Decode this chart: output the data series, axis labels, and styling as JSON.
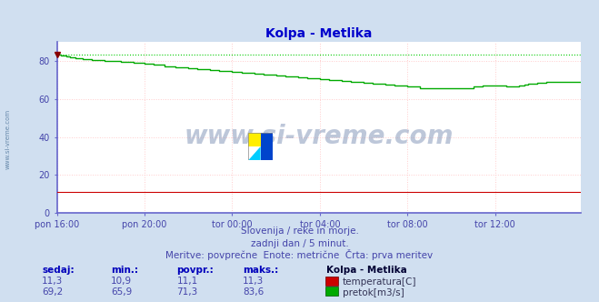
{
  "title": "Kolpa - Metlika",
  "bg_color": "#d0dff0",
  "plot_bg_color": "#ffffff",
  "grid_color": "#ffcccc",
  "spine_color": "#6666cc",
  "xlabel_ticks": [
    "pon 16:00",
    "pon 20:00",
    "tor 00:00",
    "tor 04:00",
    "tor 08:00",
    "tor 12:00"
  ],
  "ylabel_ticks": [
    0,
    20,
    40,
    60,
    80
  ],
  "ylim": [
    0,
    90
  ],
  "xlim": [
    0,
    287
  ],
  "tick_positions": [
    0,
    48,
    96,
    144,
    192,
    240
  ],
  "watermark": "www.si-vreme.com",
  "subtitle1": "Slovenija / reke in morje.",
  "subtitle2": "zadnji dan / 5 minut.",
  "subtitle3": "Meritve: povprečne  Enote: metrične  Črta: prva meritev",
  "legend_title": "Kolpa - Metlika",
  "legend_temp_label": "temperatura[C]",
  "legend_flow_label": "pretok[m3/s]",
  "stats_headers": [
    "sedaj:",
    "min.:",
    "povpr.:",
    "maks.:"
  ],
  "stats_temp": [
    "11,3",
    "10,9",
    "11,1",
    "11,3"
  ],
  "stats_flow": [
    "69,2",
    "65,9",
    "71,3",
    "83,6"
  ],
  "temp_color": "#cc0000",
  "flow_color": "#00aa00",
  "dashed_line_color": "#00cc00",
  "arrow_color": "#880000",
  "dashed_level": 83.6,
  "text_color": "#4444aa",
  "header_color": "#0000bb",
  "title_color": "#0000cc"
}
